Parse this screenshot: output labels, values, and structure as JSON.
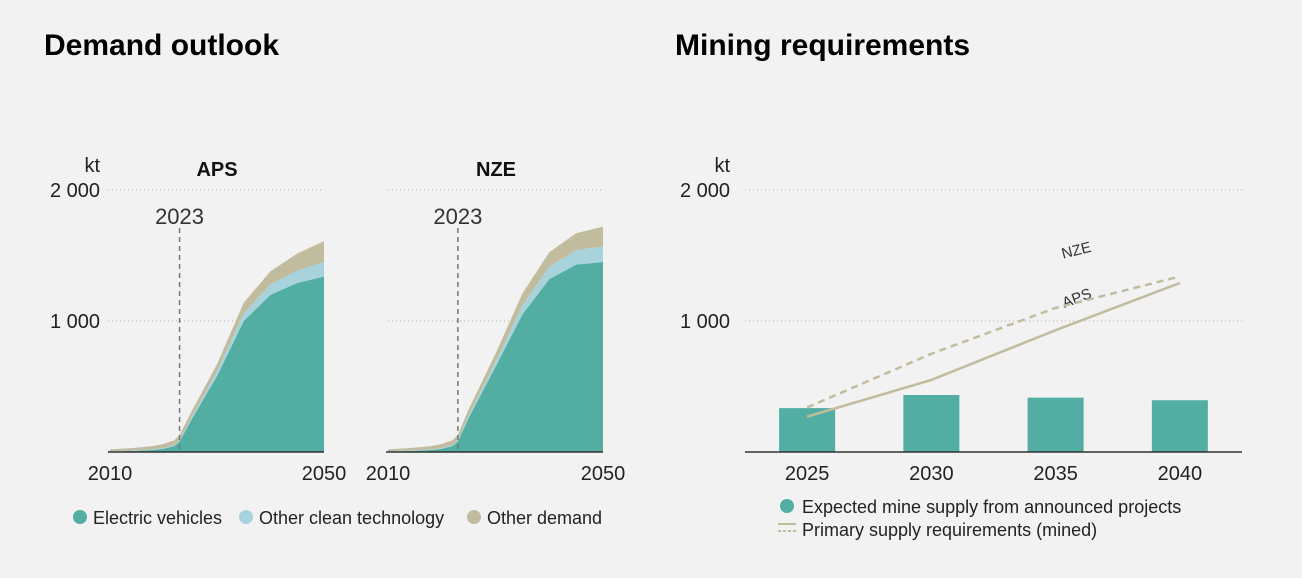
{
  "titles": {
    "left": "Demand outlook",
    "right": "Mining requirements"
  },
  "colors": {
    "ev": "#52ad a3",
    "other_clean": "#a8d3dc",
    "other_demand": "#c2bc9e",
    "line": "#c2bc9e",
    "bar": "#52ada3"
  },
  "chart_data": [
    {
      "type": "area",
      "title": "APS",
      "unit": "kt",
      "ylim": [
        0,
        2000
      ],
      "yticks": [
        {
          "v": 1000,
          "label": "1 000"
        },
        {
          "v": 2000,
          "label": "2 000"
        }
      ],
      "xlim": [
        2010,
        2050
      ],
      "xticks": [
        {
          "v": 2010,
          "label": "2010"
        },
        {
          "v": 2050,
          "label": "2050"
        }
      ],
      "marker": {
        "x": 2023,
        "label": "2023"
      },
      "x": [
        2010,
        2014,
        2018,
        2020,
        2022,
        2023,
        2025,
        2030,
        2035,
        2040,
        2045,
        2050
      ],
      "series": [
        {
          "name": "Electric vehicles",
          "key": "ev",
          "values": [
            3,
            8,
            15,
            25,
            45,
            80,
            230,
            580,
            1000,
            1200,
            1290,
            1340
          ]
        },
        {
          "name": "Other clean technology",
          "key": "other_clean",
          "values": [
            3,
            4,
            5,
            6,
            8,
            10,
            18,
            35,
            60,
            80,
            95,
            110
          ]
        },
        {
          "name": "Other demand",
          "key": "other_demand",
          "values": [
            14,
            18,
            25,
            30,
            37,
            40,
            42,
            55,
            80,
            100,
            130,
            160
          ]
        }
      ]
    },
    {
      "type": "area",
      "title": "NZE",
      "unit": "",
      "ylim": [
        0,
        2000
      ],
      "xlim": [
        2010,
        2050
      ],
      "xticks": [
        {
          "v": 2010,
          "label": "2010"
        },
        {
          "v": 2050,
          "label": "2050"
        }
      ],
      "marker": {
        "x": 2023,
        "label": "2023"
      },
      "x": [
        2010,
        2014,
        2018,
        2020,
        2022,
        2023,
        2025,
        2030,
        2035,
        2040,
        2045,
        2050
      ],
      "series": [
        {
          "name": "Electric vehicles",
          "key": "ev",
          "values": [
            3,
            8,
            15,
            25,
            45,
            80,
            260,
            650,
            1050,
            1320,
            1430,
            1450
          ]
        },
        {
          "name": "Other clean technology",
          "key": "other_clean",
          "values": [
            3,
            4,
            5,
            6,
            8,
            10,
            20,
            40,
            70,
            95,
            110,
            120
          ]
        },
        {
          "name": "Other demand",
          "key": "other_demand",
          "values": [
            14,
            18,
            25,
            30,
            37,
            40,
            45,
            60,
            90,
            110,
            130,
            150
          ]
        }
      ]
    },
    {
      "type": "bar",
      "unit": "kt",
      "ylim": [
        0,
        2000
      ],
      "yticks": [
        {
          "v": 1000,
          "label": "1 000"
        },
        {
          "v": 2000,
          "label": "2 000"
        }
      ],
      "categories": [
        "2025",
        "2030",
        "2035",
        "2040"
      ],
      "bars": {
        "name": "Expected mine supply from announced projects",
        "values": [
          335,
          435,
          415,
          395
        ]
      },
      "lines": [
        {
          "name": "APS",
          "style": "solid",
          "values": [
            270,
            550,
            930,
            1290
          ]
        },
        {
          "name": "NZE",
          "style": "dashed",
          "values": [
            340,
            750,
            1100,
            1340
          ]
        }
      ]
    }
  ],
  "legend_left": [
    {
      "label": "Electric vehicles",
      "key": "ev"
    },
    {
      "label": "Other clean technology",
      "key": "other_clean"
    },
    {
      "label": "Other demand",
      "key": "other_demand"
    }
  ],
  "legend_right": [
    {
      "label": "Expected mine supply from announced projects",
      "kind": "dot"
    },
    {
      "label": "Primary supply requirements (mined)",
      "kind": "line"
    }
  ]
}
